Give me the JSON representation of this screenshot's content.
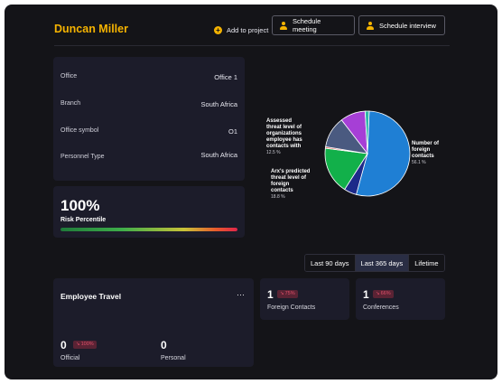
{
  "header": {
    "name": "Duncan Miller",
    "add_project_label": "Add to project",
    "plus_icon": "+",
    "schedule_meeting_label": "Schedule meeting",
    "schedule_interview_label": "Schedule interview"
  },
  "info": {
    "rows": [
      {
        "label": "Office",
        "value": "Office 1"
      },
      {
        "label": "Branch",
        "value": "South Africa"
      },
      {
        "label": "Office symbol",
        "value": "O1"
      },
      {
        "label": "Personnel Type",
        "value": "South Africa"
      }
    ]
  },
  "risk": {
    "percent_label": "100%",
    "label": "Risk Percentile",
    "value": 100
  },
  "chart_data": {
    "type": "pie",
    "slices": [
      {
        "label": "Number of foreign contacts",
        "value_label": "56.1 %",
        "value": 56.1,
        "color": "#1f7fd4"
      },
      {
        "label": "",
        "value": 5.0,
        "color": "#1d2a8a"
      },
      {
        "label": "Arx's predicted threat level of foreign contacts",
        "value_label": "18.8 %",
        "value": 18.8,
        "color": "#12b04a"
      },
      {
        "label": "",
        "value": 0.6,
        "color": "#d9534f"
      },
      {
        "label": "Assessed threat level of organizations employee has contacts with",
        "value_label": "12.5 %",
        "value": 12.5,
        "color": "#4a5a80"
      },
      {
        "label": "",
        "value": 10.0,
        "color": "#a63fd6"
      },
      {
        "label": "",
        "value": 1.6,
        "color": "#2fb8a8"
      }
    ],
    "annotations": {
      "right": [
        "Number of",
        "foreign",
        "contacts"
      ],
      "right_value": "56.1 %",
      "top_left": [
        "Assessed",
        "threat level of",
        "organizations",
        "employee has",
        "contacts with"
      ],
      "top_left_value": "12.5 %",
      "bottom_left": [
        "Arx's predicted",
        "threat level of",
        "foreign",
        "contacts"
      ],
      "bottom_left_value": "18.8 %"
    }
  },
  "range_tabs": [
    "Last 90 days",
    "Last 365 days",
    "Lifetime"
  ],
  "range_active": 1,
  "travel": {
    "title": "Employee Travel",
    "menu_icon": "···",
    "official_value": "0",
    "official_badge": "100%",
    "official_label": "Official",
    "personal_value": "0",
    "personal_label": "Personal"
  },
  "foreign_contacts": {
    "value": "1",
    "badge": "75%",
    "label": "Foreign Contacts"
  },
  "conferences": {
    "value": "1",
    "badge": "66%",
    "label": "Conferences"
  },
  "badge_arrow": "↘"
}
